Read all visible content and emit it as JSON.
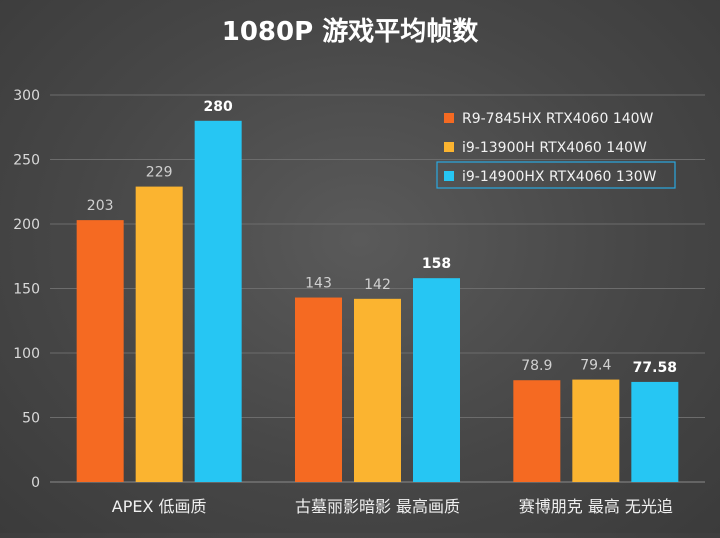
{
  "chart_data": {
    "type": "bar",
    "title": "1080P 游戏平均帧数",
    "categories": [
      "APEX 低画质",
      "古墓丽影暗影 最高画质",
      "赛博朋克 最高 无光追"
    ],
    "series": [
      {
        "name": "R9-7845HX RTX4060 140W",
        "color": "#f56a22",
        "values": [
          203,
          143,
          78.9
        ],
        "labels": [
          "203",
          "143",
          "78.9"
        ]
      },
      {
        "name": "i9-13900H RTX4060 140W",
        "color": "#fbb430",
        "values": [
          229,
          142,
          79.4
        ],
        "labels": [
          "229",
          "142",
          "79.4"
        ]
      },
      {
        "name": "i9-14900HX RTX4060 130W",
        "color": "#26c6f3",
        "values": [
          280,
          158,
          77.58
        ],
        "labels": [
          "280",
          "158",
          "77.58"
        ],
        "highlight": true
      }
    ],
    "ylim": [
      0,
      300
    ],
    "yticks": [
      "0",
      "50",
      "100",
      "150",
      "200",
      "250",
      "300"
    ],
    "ytick_values": [
      0,
      50,
      100,
      150,
      200,
      250,
      300
    ],
    "xlabel": "",
    "ylabel": "",
    "grid": true,
    "legend_position": "top-right"
  }
}
